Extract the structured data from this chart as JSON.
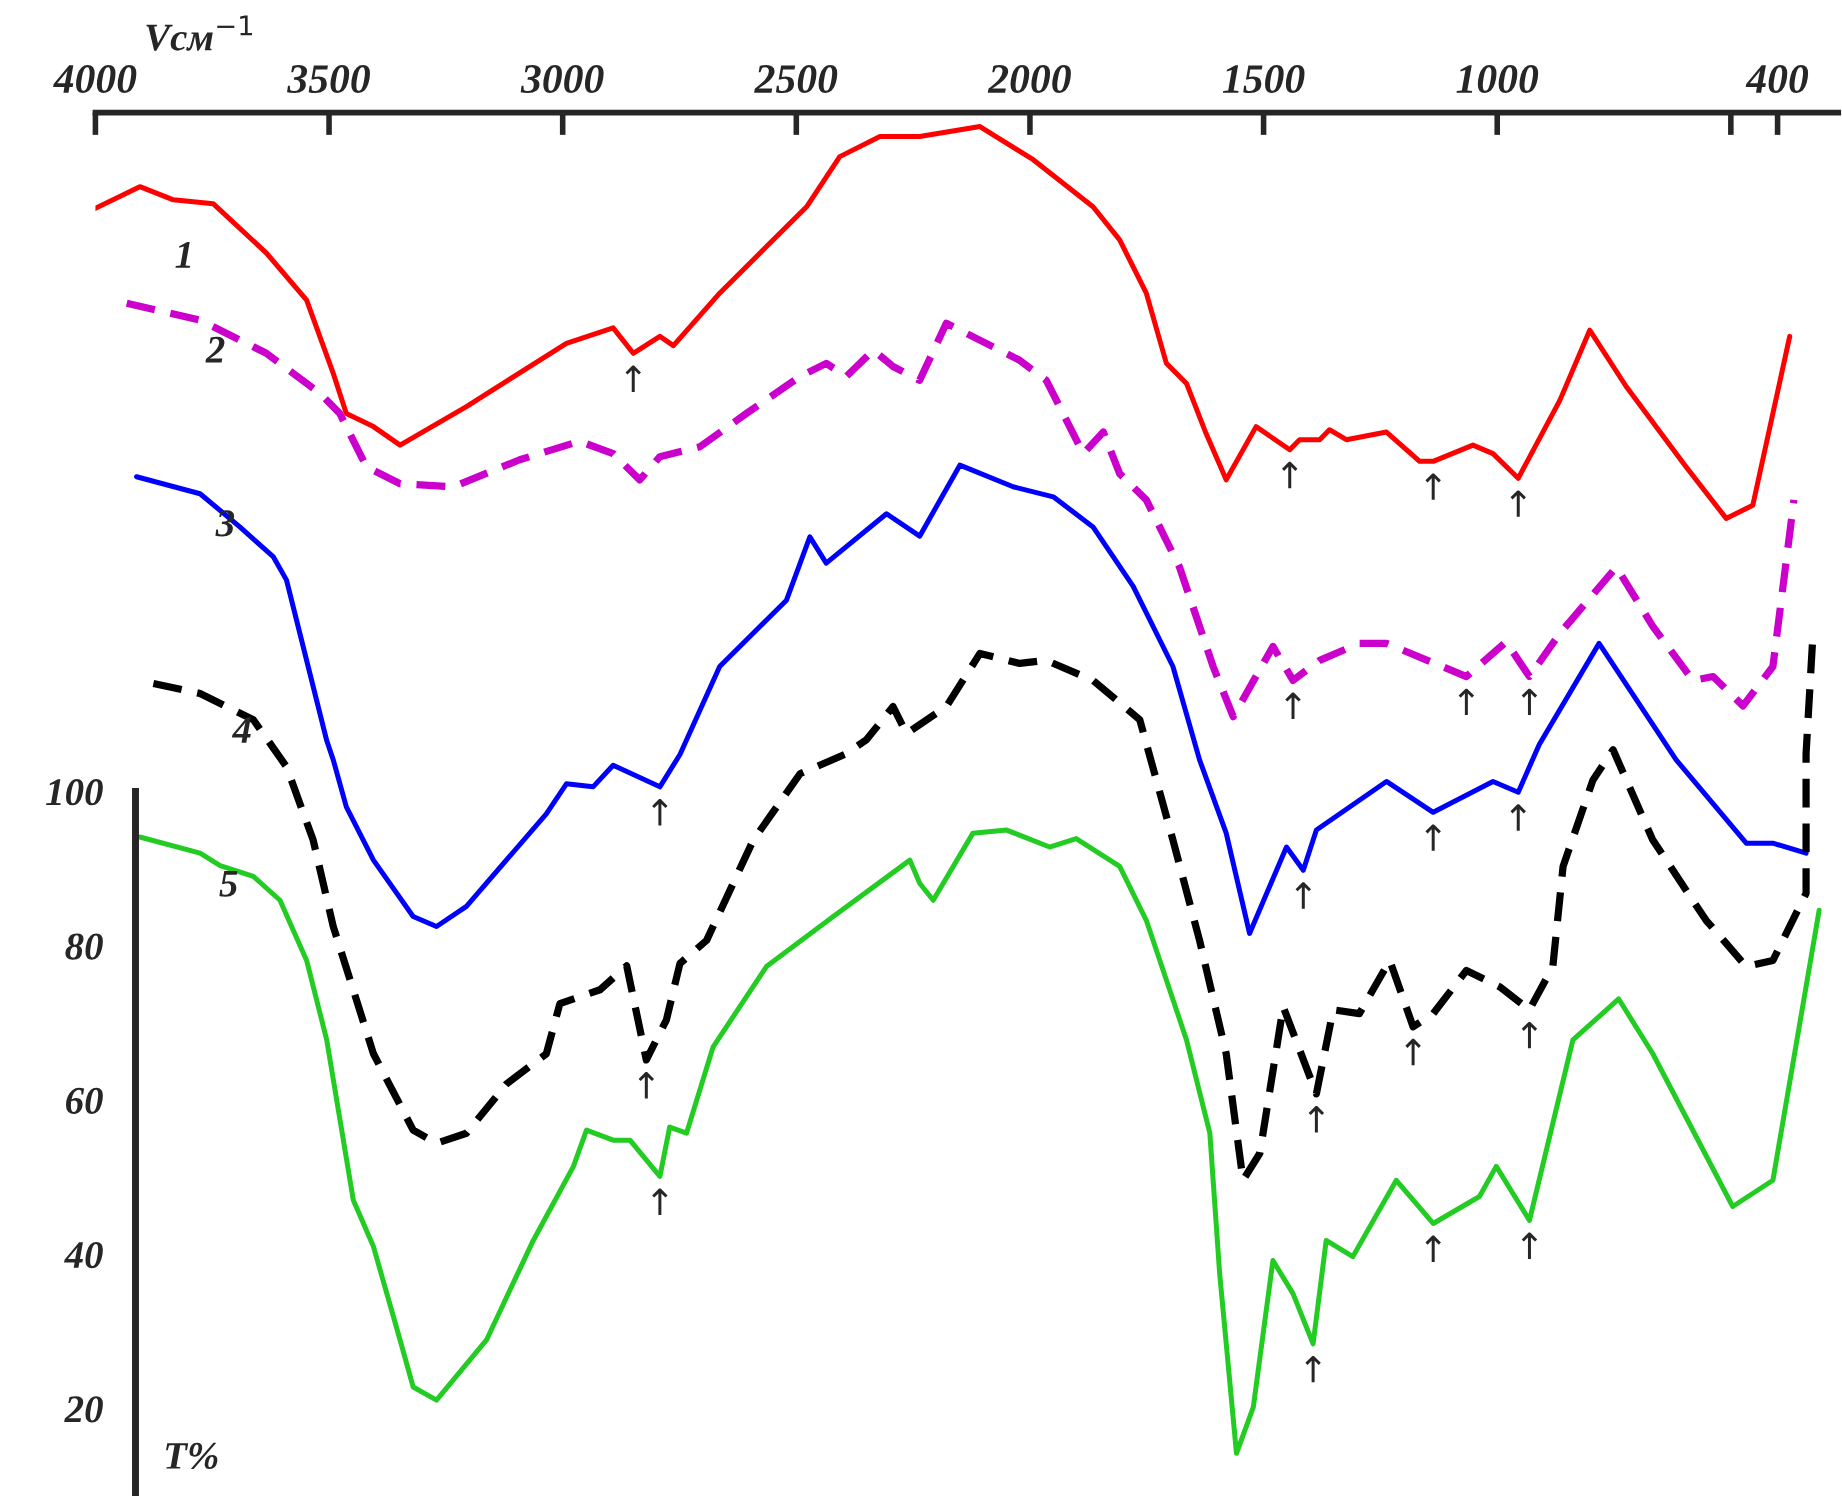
{
  "chart_data": {
    "type": "line",
    "xlabel": "Vсм$^{−1}$",
    "ylabel": "T%",
    "xlim": [
      4000,
      270
    ],
    "ylim": [
      9,
      188
    ],
    "xticks": [
      4000,
      3500,
      3000,
      2500,
      2000,
      1500,
      1000,
      {
        "value": 500,
        "label": null
      },
      400
    ],
    "yticks": [
      20,
      40,
      60,
      80,
      100
    ],
    "series": [
      {
        "name": "1",
        "color": "#ff0000",
        "line_style": "solid",
        "x": [
          4000,
          3905,
          3833,
          3748,
          3634,
          3548,
          3491,
          3463,
          3405,
          3348,
          3206,
          2992,
          2892,
          2849,
          2792,
          2763,
          2664,
          2478,
          2407,
          2321,
          2236,
          2107,
          1993,
          1865,
          1808,
          1751,
          1708,
          1665,
          1623,
          1580,
          1516,
          1444,
          1423,
          1380,
          1359,
          1323,
          1237,
          1166,
          1137,
          1052,
          1009,
          955,
          866,
          802,
          724,
          596,
          510,
          453,
          374
        ],
        "values": [
          175.6,
          178.4,
          176.7,
          176.2,
          169.8,
          163.7,
          154.2,
          149.0,
          147.3,
          144.9,
          149.9,
          158.1,
          160.1,
          156.8,
          159.0,
          157.8,
          164.6,
          175.8,
          182.3,
          184.9,
          184.9,
          186.2,
          181.9,
          175.8,
          171.5,
          164.6,
          155.5,
          152.9,
          146.4,
          140.4,
          147.3,
          144.3,
          145.6,
          145.6,
          146.9,
          145.6,
          146.6,
          142.8,
          142.8,
          144.9,
          143.8,
          140.6,
          150.7,
          159.8,
          152.5,
          142.1,
          135.4,
          137.1,
          159.0
        ]
      },
      {
        "name": "2",
        "color": "#cc00cc",
        "line_style": "dashed",
        "x": [
          3933,
          3776,
          3634,
          3519,
          3477,
          3420,
          3348,
          3234,
          3092,
          2964,
          2892,
          2835,
          2792,
          2706,
          2607,
          2492,
          2436,
          2393,
          2335,
          2293,
          2236,
          2179,
          2022,
          1965,
          1886,
          1843,
          1808,
          1751,
          1680,
          1608,
          1565,
          1480,
          1437,
          1380,
          1295,
          1237,
          1066,
          981,
          931,
          866,
          745,
          667,
          581,
          538,
          474,
          410,
          365
        ],
        "values": [
          163.3,
          161.1,
          156.8,
          151.6,
          149.0,
          142.1,
          139.9,
          139.5,
          143.0,
          145.4,
          143.8,
          140.4,
          143.4,
          144.7,
          149.0,
          153.8,
          155.5,
          153.8,
          157.2,
          155.1,
          153.3,
          160.7,
          155.9,
          153.3,
          143.8,
          146.6,
          141.2,
          137.8,
          129.1,
          116.2,
          109.7,
          118.8,
          114.4,
          117.0,
          119.2,
          119.2,
          114.9,
          119.4,
          114.9,
          120.5,
          129.1,
          121.4,
          114.4,
          114.9,
          111.1,
          116.2,
          137.8
        ]
      },
      {
        "name": "3",
        "color": "#0000ff",
        "line_style": "solid",
        "x": [
          3912,
          3776,
          3691,
          3619,
          3591,
          3505,
          3491,
          3463,
          3405,
          3320,
          3270,
          3206,
          3035,
          2992,
          2935,
          2892,
          2792,
          2749,
          2664,
          2521,
          2471,
          2436,
          2307,
          2236,
          2150,
          2036,
          1950,
          1865,
          1779,
          1694,
          1637,
          1580,
          1530,
          1451,
          1415,
          1387,
          1237,
          1137,
          1009,
          955,
          910,
          782,
          617,
          467,
          410,
          339
        ],
        "values": [
          140.8,
          138.6,
          134.3,
          130.4,
          127.4,
          106.6,
          104.1,
          98.0,
          91.1,
          83.8,
          82.5,
          85.1,
          97.1,
          101.0,
          100.6,
          103.4,
          100.6,
          104.8,
          116.2,
          124.8,
          133.0,
          129.6,
          136.0,
          133.1,
          142.3,
          139.5,
          138.2,
          134.3,
          126.6,
          116.2,
          104.1,
          94.6,
          81.6,
          92.8,
          89.8,
          95.0,
          101.3,
          97.3,
          101.3,
          99.9,
          106.1,
          119.2,
          104.1,
          93.3,
          93.3,
          92.0
        ]
      },
      {
        "name": "4",
        "color": "#000000",
        "line_style": "dashed",
        "x": [
          3876,
          3776,
          3662,
          3591,
          3534,
          3491,
          3405,
          3320,
          3270,
          3206,
          3120,
          3035,
          3006,
          2920,
          2863,
          2821,
          2778,
          2749,
          2692,
          2592,
          2492,
          2393,
          2350,
          2293,
          2264,
          2179,
          2107,
          2022,
          1965,
          1865,
          1765,
          1694,
          1637,
          1580,
          1544,
          1508,
          1458,
          1387,
          1351,
          1295,
          1230,
          1180,
          1137,
          1066,
          995,
          931,
          881,
          859,
          795,
          752,
          667,
          553,
          467,
          410,
          339,
          339,
          325
        ],
        "values": [
          114.0,
          112.7,
          109.3,
          103.2,
          93.7,
          82.5,
          66.0,
          56.1,
          54.4,
          55.7,
          62.1,
          66.0,
          72.5,
          74.3,
          77.4,
          65.2,
          70.4,
          77.7,
          80.7,
          93.7,
          102.3,
          104.9,
          106.7,
          111.0,
          107.5,
          111.0,
          117.9,
          116.6,
          117.0,
          114.4,
          109.3,
          93.7,
          80.7,
          66.0,
          49.6,
          53.1,
          72.1,
          60.8,
          71.7,
          71.2,
          78.1,
          69.5,
          71.2,
          76.8,
          74.7,
          71.7,
          77.3,
          90.3,
          101.5,
          105.4,
          93.7,
          83.3,
          77.3,
          78.1,
          86.8,
          104.9,
          119.6
        ]
      },
      {
        "name": "5",
        "color": "#22cc22",
        "line_style": "solid",
        "x": [
          3905,
          3776,
          3733,
          3662,
          3605,
          3548,
          3505,
          3448,
          3405,
          3348,
          3320,
          3270,
          3163,
          3063,
          2977,
          2949,
          2892,
          2856,
          2792,
          2771,
          2735,
          2678,
          2564,
          2421,
          2257,
          2236,
          2207,
          2122,
          2050,
          1958,
          1901,
          1808,
          1751,
          1665,
          1615,
          1594,
          1558,
          1522,
          1480,
          1437,
          1394,
          1366,
          1309,
          1216,
          1137,
          1038,
          1002,
          931,
          838,
          740,
          667,
          496,
          410,
          311
        ],
        "values": [
          94.1,
          92.0,
          90.4,
          89.0,
          85.9,
          78.1,
          67.8,
          47.0,
          41.0,
          28.9,
          22.8,
          21.1,
          28.9,
          41.8,
          51.4,
          56.1,
          54.8,
          54.8,
          50.1,
          56.5,
          55.7,
          66.9,
          77.3,
          83.8,
          91.1,
          88.1,
          85.9,
          94.6,
          95.0,
          92.8,
          93.9,
          90.3,
          83.3,
          67.8,
          55.7,
          37.5,
          14.2,
          20.2,
          39.2,
          34.9,
          28.4,
          41.8,
          39.7,
          49.6,
          44.0,
          47.5,
          51.4,
          44.4,
          67.8,
          73.1,
          66.0,
          46.2,
          49.6,
          84.6
        ]
      }
    ],
    "annotations": [
      {
        "text": "↑",
        "x": 2849,
        "y": 156.8
      },
      {
        "text": "↑",
        "x": 1444,
        "y": 144.3
      },
      {
        "text": "↑",
        "x": 1137,
        "y": 142.8
      },
      {
        "text": "↑",
        "x": 955,
        "y": 140.6
      },
      {
        "text": "↑",
        "x": 1437,
        "y": 114.4
      },
      {
        "text": "↑",
        "x": 1066,
        "y": 114.9
      },
      {
        "text": "↑",
        "x": 931,
        "y": 114.9
      },
      {
        "text": "↑",
        "x": 2792,
        "y": 100.6
      },
      {
        "text": "↑",
        "x": 1415,
        "y": 89.8
      },
      {
        "text": "↑",
        "x": 1137,
        "y": 97.3
      },
      {
        "text": "↑",
        "x": 955,
        "y": 99.9
      },
      {
        "text": "↑",
        "x": 2821,
        "y": 65.2
      },
      {
        "text": "↑",
        "x": 1387,
        "y": 60.8
      },
      {
        "text": "↑",
        "x": 1180,
        "y": 69.5
      },
      {
        "text": "↑",
        "x": 931,
        "y": 71.7
      },
      {
        "text": "↑",
        "x": 2792,
        "y": 50.1
      },
      {
        "text": "↑",
        "x": 1394,
        "y": 28.4
      },
      {
        "text": "↑",
        "x": 1137,
        "y": 44.0
      },
      {
        "text": "↑",
        "x": 931,
        "y": 44.4
      }
    ]
  }
}
